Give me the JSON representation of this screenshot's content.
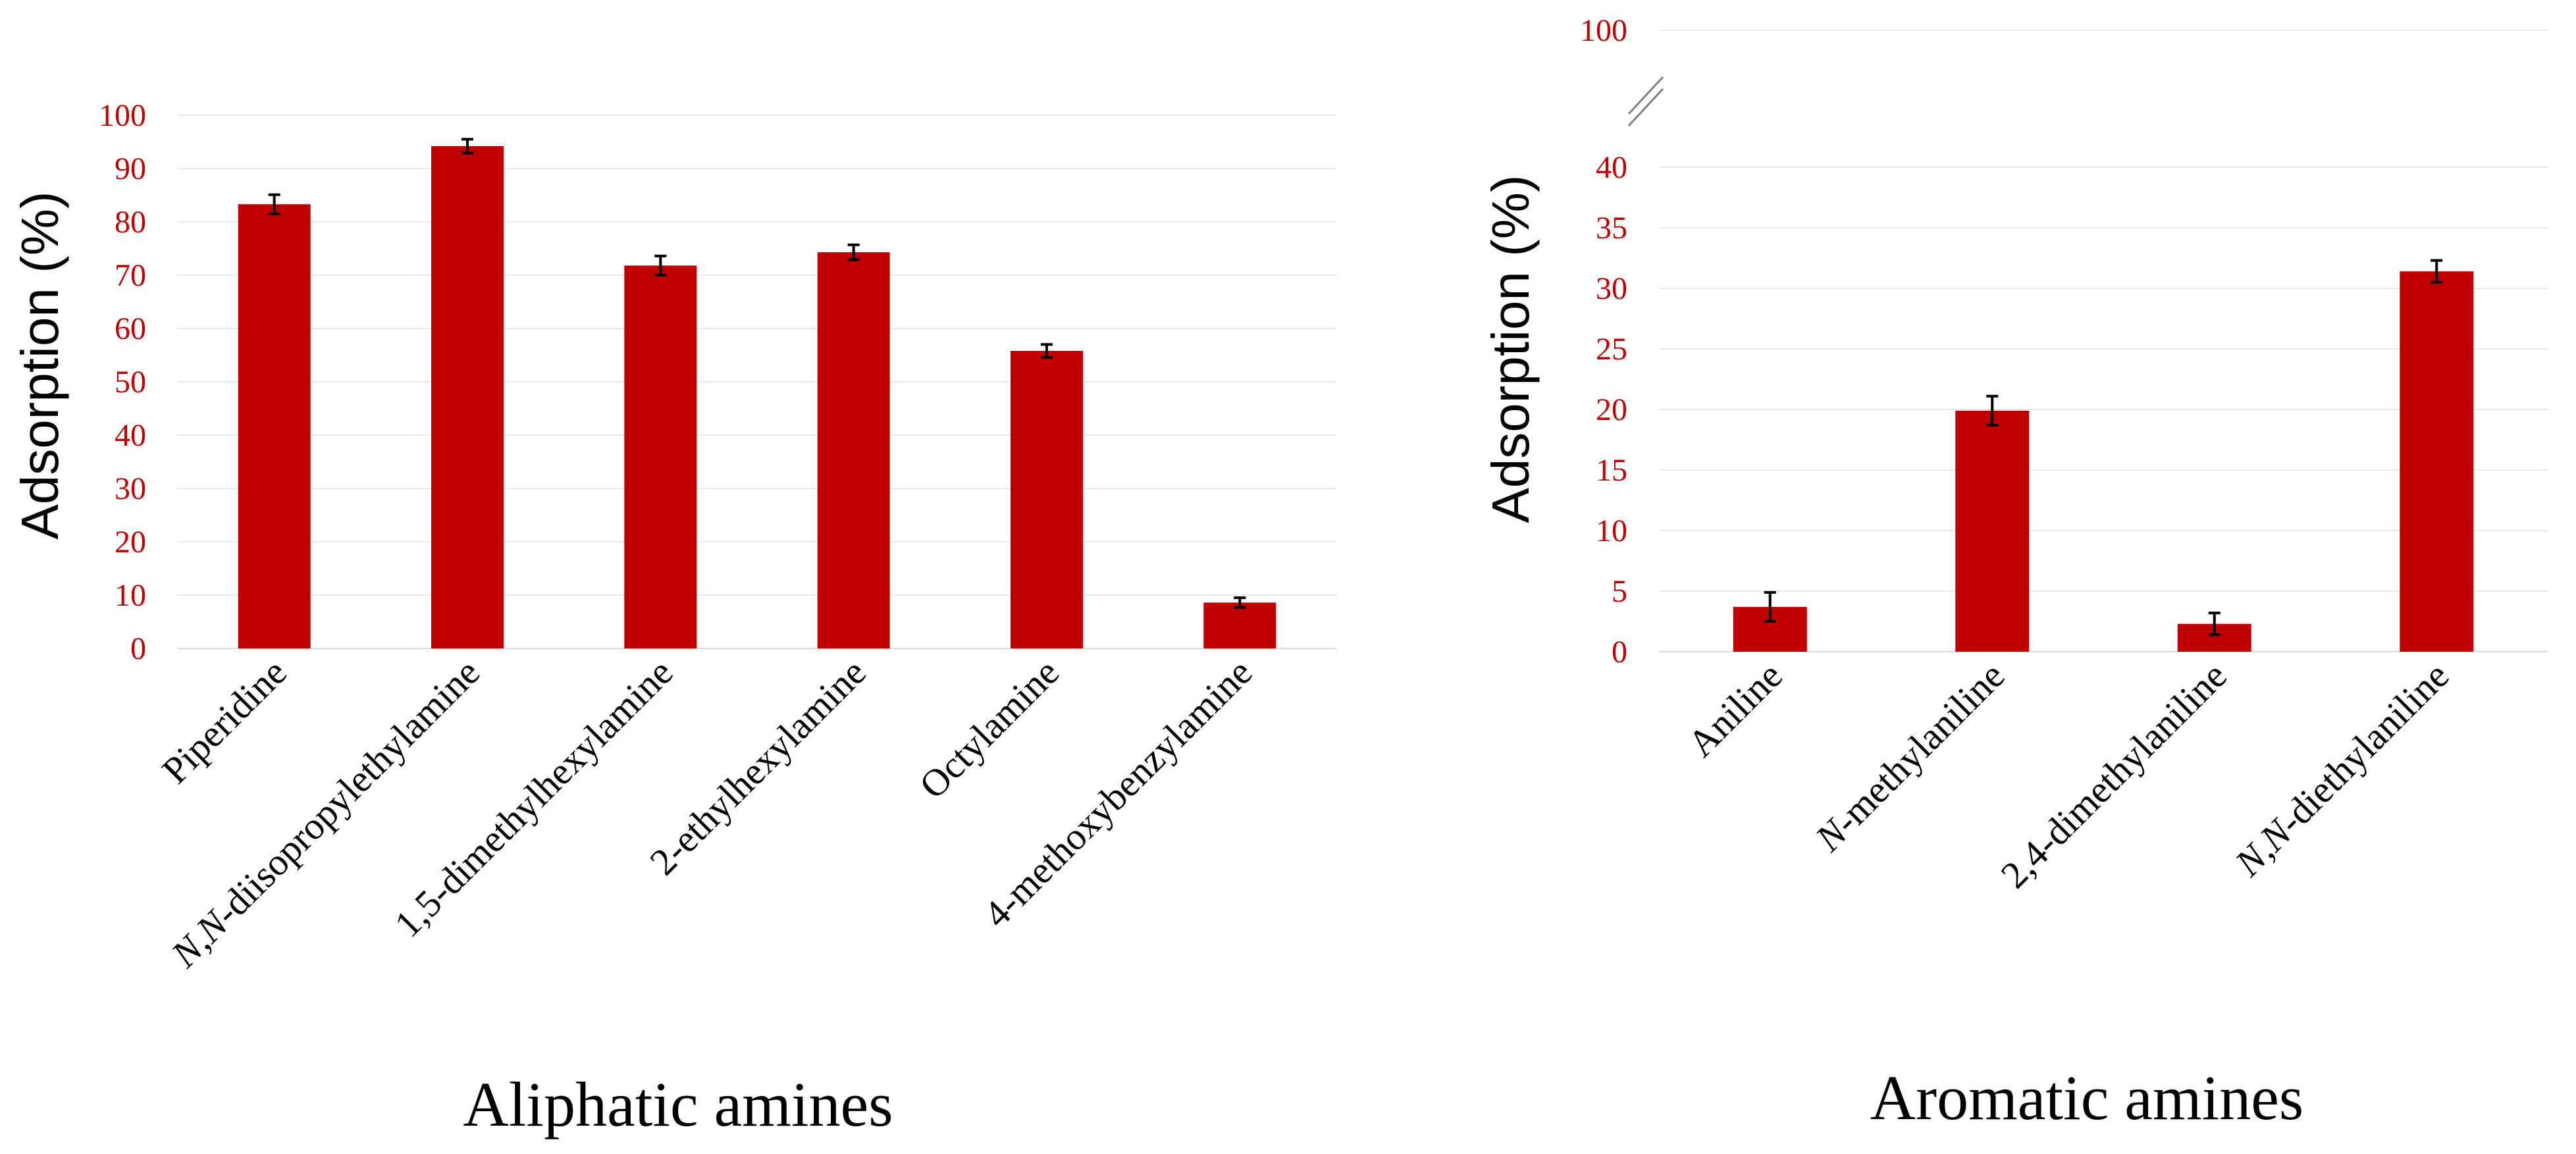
{
  "chart_data": [
    {
      "type": "bar",
      "title": "Aliphatic amines",
      "xlabel": "Aliphatic amines",
      "ylabel": "Adsorption (%)",
      "ylim": [
        0,
        100
      ],
      "yticks": [
        "0",
        "10",
        "20",
        "30",
        "40",
        "50",
        "60",
        "70",
        "80",
        "90",
        "100"
      ],
      "categories": [
        {
          "pre": "",
          "italic": "",
          "rest": "Piperidine"
        },
        {
          "pre": "",
          "italic": "N,N",
          "rest": "-diisopropylethylamine"
        },
        {
          "pre": "",
          "italic": "",
          "rest": "1,5-dimethylhexylamine"
        },
        {
          "pre": "",
          "italic": "",
          "rest": "2-ethylhexylamine"
        },
        {
          "pre": "",
          "italic": "",
          "rest": "Octylamine"
        },
        {
          "pre": "",
          "italic": "",
          "rest": "4-methoxybenzylamine"
        }
      ],
      "values": [
        83.3,
        94.2,
        71.8,
        74.3,
        55.8,
        8.6
      ],
      "errors": [
        1.8,
        1.3,
        1.8,
        1.4,
        1.2,
        0.9
      ],
      "bar_color": "#c00000",
      "tick_color": "#c00000",
      "axis_break": false
    },
    {
      "type": "bar",
      "title": "Aromatic amines",
      "xlabel": "Aromatic amines",
      "ylabel": "Adsorption (%)",
      "ylim": [
        0,
        40
      ],
      "yticks": [
        "0",
        "5",
        "10",
        "15",
        "20",
        "25",
        "30",
        "35",
        "40"
      ],
      "axis_break": true,
      "break_top_tick": "100",
      "categories": [
        {
          "pre": "",
          "italic": "",
          "rest": "Aniline"
        },
        {
          "pre": "",
          "italic": "N",
          "rest": "-methylaniline"
        },
        {
          "pre": "",
          "italic": "",
          "rest": "2,4-dimethylaniline"
        },
        {
          "pre": "",
          "italic": "N,N",
          "rest": "-diethylaniline"
        }
      ],
      "values": [
        3.7,
        19.9,
        2.3,
        31.4
      ],
      "errors": [
        1.2,
        1.2,
        0.9,
        0.9
      ],
      "bar_color": "#c00000",
      "tick_color": "#c00000"
    }
  ]
}
